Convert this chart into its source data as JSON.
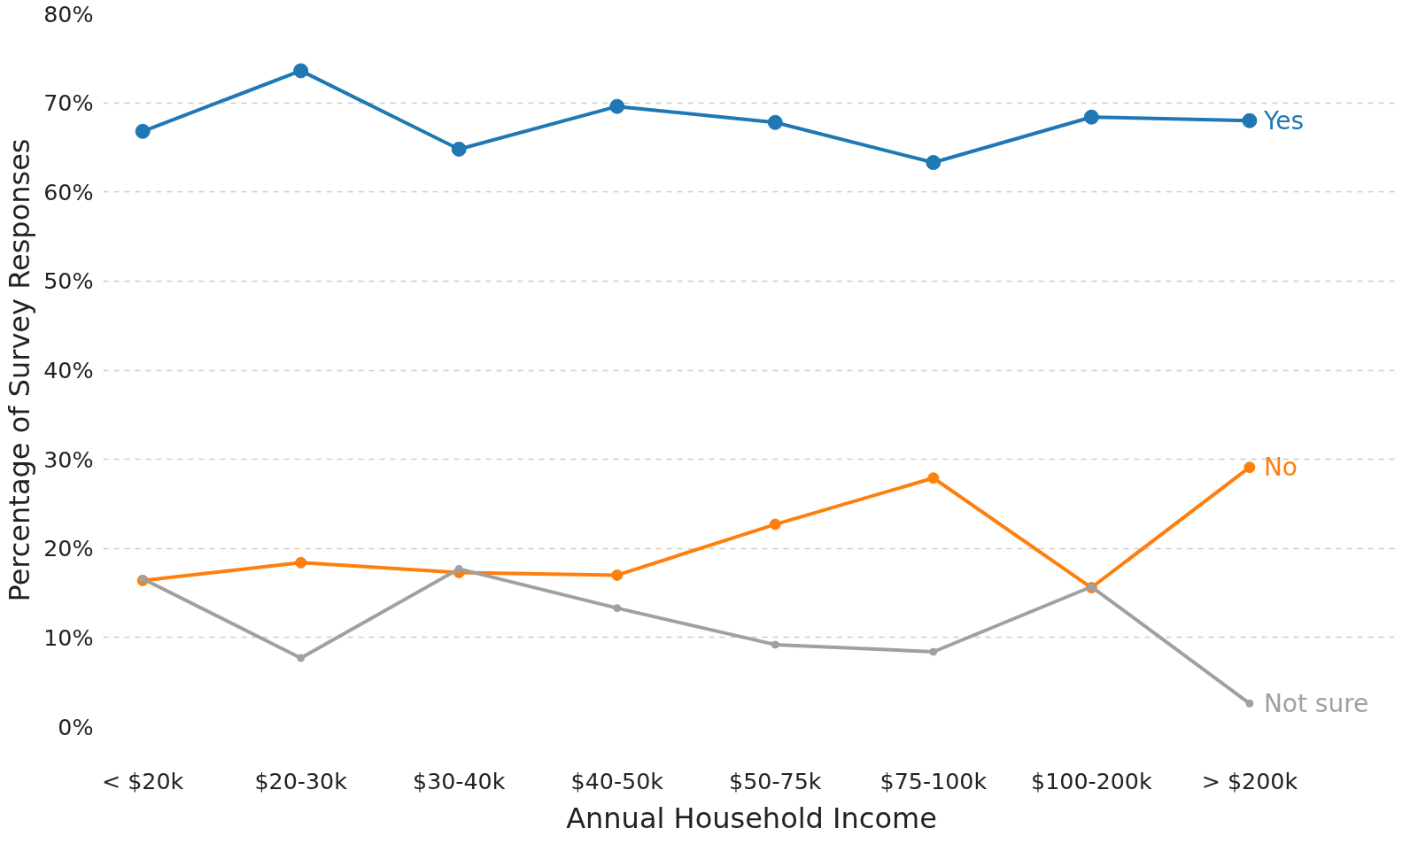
{
  "chart_data": {
    "type": "line",
    "xlabel": "Annual Household Income",
    "ylabel": "Percentage of Survey Responses",
    "categories": [
      "< $20k",
      "$20-30k",
      "$30-40k",
      "$40-50k",
      "$50-75k",
      "$75-100k",
      "$100-200k",
      "> $200k"
    ],
    "series": [
      {
        "name": "Yes",
        "color": "#1f77b4",
        "values": [
          66.8,
          73.6,
          64.8,
          69.6,
          67.8,
          63.3,
          68.4,
          68.0
        ]
      },
      {
        "name": "No",
        "color": "#ff7f0e",
        "values": [
          16.4,
          18.4,
          17.3,
          17.0,
          22.7,
          27.9,
          15.6,
          29.1
        ]
      },
      {
        "name": "Not sure",
        "color": "#a0a0a0",
        "values": [
          16.6,
          7.7,
          17.7,
          13.3,
          9.2,
          8.4,
          15.7,
          2.6
        ]
      }
    ],
    "ylim": [
      0,
      80
    ],
    "yticks": [
      {
        "value": 0,
        "label": "0%"
      },
      {
        "value": 10,
        "label": "10%"
      },
      {
        "value": 20,
        "label": "20%"
      },
      {
        "value": 30,
        "label": "30%"
      },
      {
        "value": 40,
        "label": "40%"
      },
      {
        "value": 50,
        "label": "50%"
      },
      {
        "value": 60,
        "label": "60%"
      },
      {
        "value": 70,
        "label": "70%"
      },
      {
        "value": 80,
        "label": "80%"
      }
    ],
    "grid": "y",
    "legend": false,
    "marker": "circle",
    "line_style": "solid"
  }
}
